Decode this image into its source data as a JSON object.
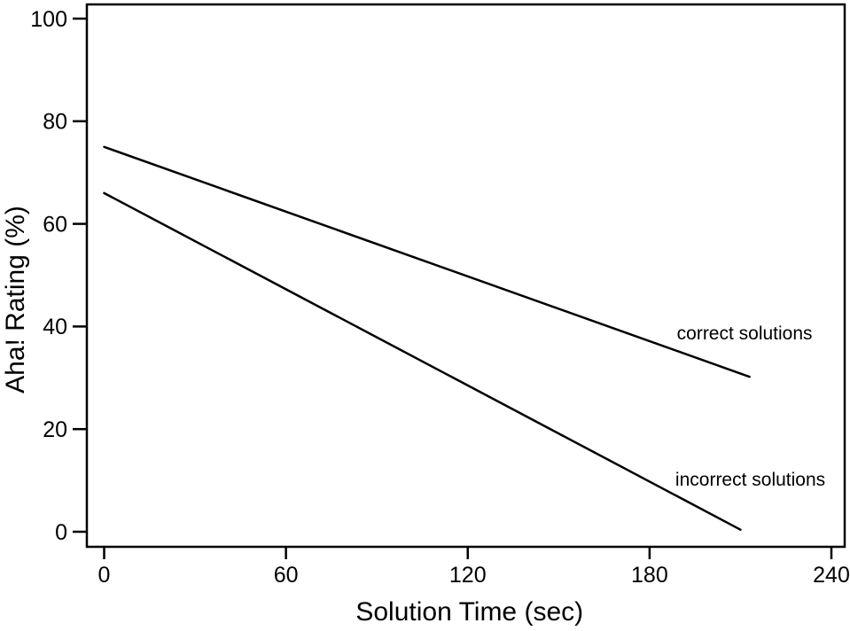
{
  "figure": {
    "background_color": "#ffffff",
    "line_color": "#000000",
    "text_color": "#000000"
  },
  "chart_data": {
    "type": "line",
    "title": "",
    "xlabel": "Solution Time (sec)",
    "ylabel": "Aha! Rating (%)",
    "xlim": [
      0,
      240
    ],
    "ylim": [
      0,
      100
    ],
    "x_ticks": [
      0,
      60,
      120,
      180,
      240
    ],
    "y_ticks": [
      0,
      20,
      40,
      60,
      80,
      100
    ],
    "grid": false,
    "legend_position": "inline-labels",
    "series": [
      {
        "name": "correct solutions",
        "label": "correct solutions",
        "x": [
          0,
          213
        ],
        "y": [
          75,
          30.2
        ],
        "label_x": 189,
        "label_y": 37.5
      },
      {
        "name": "incorrect solutions",
        "label": "incorrect solutions",
        "x": [
          0,
          210
        ],
        "y": [
          66,
          0.4
        ],
        "label_x": 188.5,
        "label_y": 9
      }
    ]
  }
}
